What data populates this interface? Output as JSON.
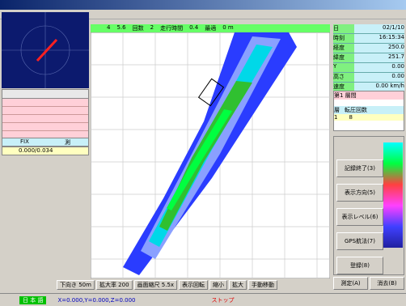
{
  "top_bar": [
    "4",
    "5.6",
    "回数",
    "2",
    "走行時間",
    "0.4",
    "最適",
    "0 m"
  ],
  "info_rows": [
    {
      "label": "日",
      "value": "02/1/10"
    },
    {
      "label": "時刻",
      "value": "16:15:34"
    },
    {
      "label": "経度",
      "value": "250.0"
    },
    {
      "label": "緯度",
      "value": "251.7"
    },
    {
      "label": "Y",
      "value": "0.00"
    },
    {
      "label": "高さ",
      "value": "0.00"
    },
    {
      "label": "速度",
      "value": "0.00 km/h"
    }
  ],
  "mode_box": {
    "title": "第1 層間",
    "headers": [
      "層",
      "転圧回数"
    ],
    "row": [
      "1",
      "8"
    ]
  },
  "left_table": {
    "footer": [
      "FIX",
      "測"
    ],
    "values": "0.000/0.034"
  },
  "buttons": [
    "記録終了(3)",
    "表示方向(5)",
    "表示レベル(6)",
    "GPS航法(7)",
    "登録(8)"
  ],
  "bottom_buttons": [
    "測定(A)",
    "消去(B)"
  ],
  "bottom_bar": [
    "下向き 50m",
    "拡大率 200",
    "画面縮尺 5.5x",
    "表示回転",
    "縮小",
    "拡大",
    "手動移動"
  ],
  "status_bar": [
    "日 本 語",
    "X=0.000,Y=0.000,Z=0.000",
    "ストップ"
  ]
}
